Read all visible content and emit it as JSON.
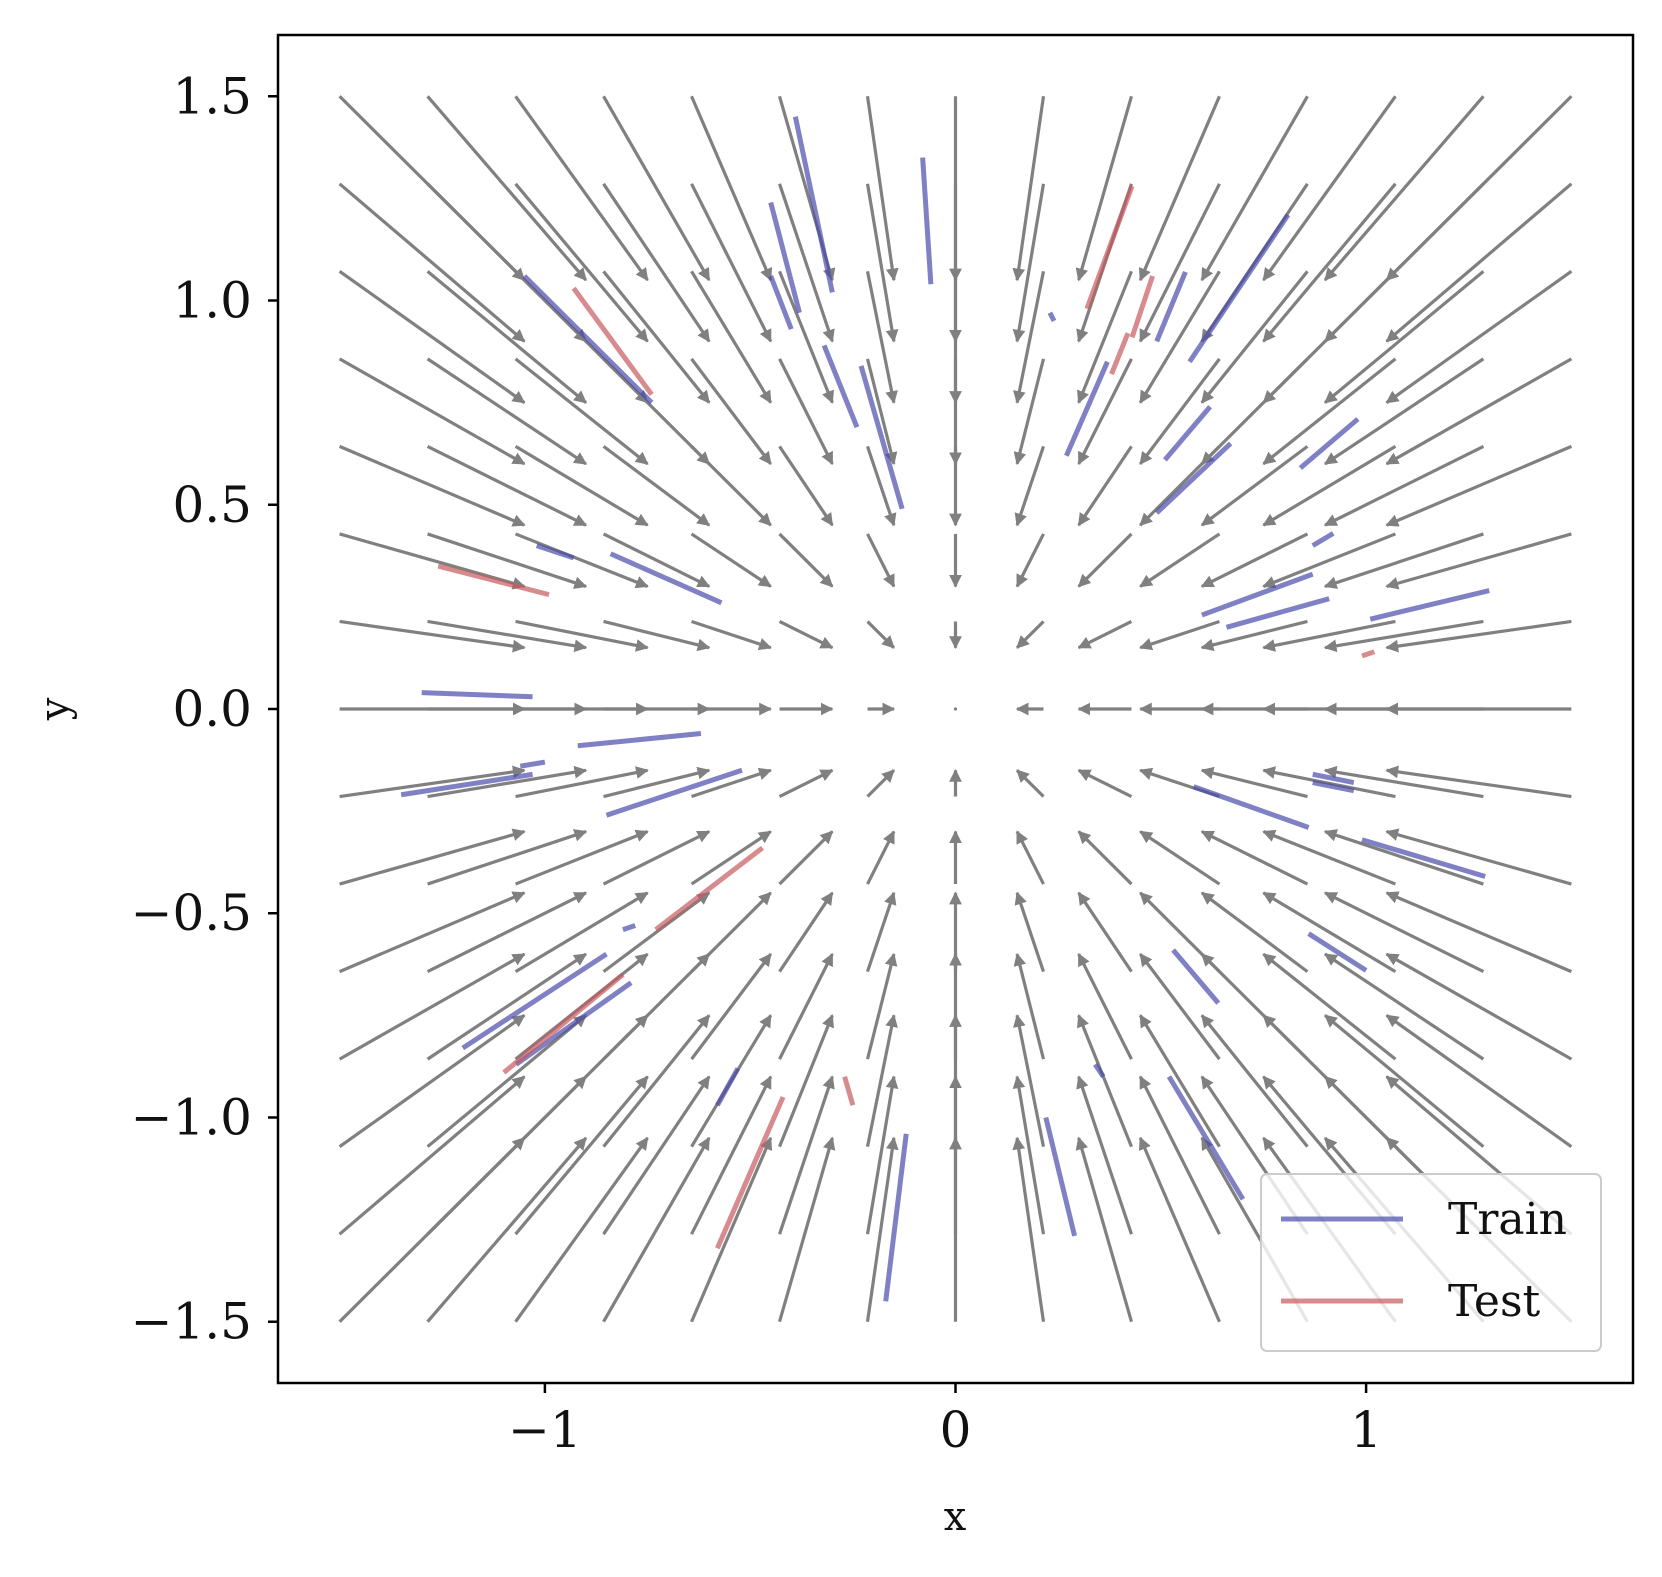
{
  "chart_data": {
    "type": "quiver",
    "title": "",
    "xlabel": "x",
    "ylabel": "y",
    "xlim": [
      -1.65,
      1.65
    ],
    "ylim": [
      -1.65,
      1.65
    ],
    "grid": false,
    "legend": {
      "placement": "lower-right"
    },
    "x_ticks": [
      {
        "value": -1,
        "label": "−1"
      },
      {
        "value": 0,
        "label": "0"
      },
      {
        "value": 1,
        "label": "1"
      }
    ],
    "y_ticks": [
      {
        "value": 1.5,
        "label": "1.5"
      },
      {
        "value": 1.0,
        "label": "1.0"
      },
      {
        "value": 0.5,
        "label": "0.5"
      },
      {
        "value": 0.0,
        "label": "0.0"
      },
      {
        "value": -0.5,
        "label": "−0.5"
      },
      {
        "value": -1.0,
        "label": "−1.0"
      },
      {
        "value": -1.5,
        "label": "−1.5"
      }
    ],
    "vector_field": {
      "color": "#808080",
      "grid_range": [
        -1.5,
        1.5
      ],
      "grid_count": 15,
      "description_of_field": "radial convergence toward origin, magnitude grows with distance from origin"
    },
    "series": [
      {
        "name": "Train",
        "color": "#4a4aab",
        "segments": [
          [
            [
              -1.3,
              0.04
            ],
            [
              -1.03,
              0.03
            ]
          ],
          [
            [
              -0.92,
              -0.09
            ],
            [
              -0.62,
              -0.06
            ]
          ],
          [
            [
              -1.06,
              -0.14
            ],
            [
              -1.0,
              -0.13
            ]
          ],
          [
            [
              -1.35,
              -0.21
            ],
            [
              -1.03,
              -0.16
            ]
          ],
          [
            [
              -0.85,
              -0.26
            ],
            [
              -0.52,
              -0.15
            ]
          ],
          [
            [
              -1.02,
              0.4
            ],
            [
              -0.93,
              0.37
            ]
          ],
          [
            [
              -0.84,
              0.38
            ],
            [
              -0.57,
              0.26
            ]
          ],
          [
            [
              -1.05,
              1.06
            ],
            [
              -0.74,
              0.75
            ]
          ],
          [
            [
              -0.39,
              1.45
            ],
            [
              -0.3,
              1.02
            ]
          ],
          [
            [
              -0.45,
              1.24
            ],
            [
              -0.38,
              0.97
            ]
          ],
          [
            [
              -0.45,
              1.06
            ],
            [
              -0.4,
              0.93
            ]
          ],
          [
            [
              -0.32,
              0.89
            ],
            [
              -0.24,
              0.69
            ]
          ],
          [
            [
              -0.23,
              0.84
            ],
            [
              -0.13,
              0.49
            ]
          ],
          [
            [
              -0.08,
              1.35
            ],
            [
              -0.06,
              1.04
            ]
          ],
          [
            [
              0.23,
              0.97
            ],
            [
              0.24,
              0.95
            ]
          ],
          [
            [
              0.27,
              0.62
            ],
            [
              0.37,
              0.85
            ]
          ],
          [
            [
              0.49,
              0.9
            ],
            [
              0.56,
              1.07
            ]
          ],
          [
            [
              0.57,
              0.85
            ],
            [
              0.81,
              1.21
            ]
          ],
          [
            [
              0.51,
              0.61
            ],
            [
              0.62,
              0.74
            ]
          ],
          [
            [
              0.49,
              0.48
            ],
            [
              0.67,
              0.65
            ]
          ],
          [
            [
              0.84,
              0.59
            ],
            [
              0.98,
              0.71
            ]
          ],
          [
            [
              0.87,
              0.4
            ],
            [
              0.92,
              0.43
            ]
          ],
          [
            [
              0.6,
              0.23
            ],
            [
              0.87,
              0.33
            ]
          ],
          [
            [
              0.66,
              0.2
            ],
            [
              0.91,
              0.27
            ]
          ],
          [
            [
              1.01,
              0.22
            ],
            [
              1.3,
              0.29
            ]
          ],
          [
            [
              0.58,
              -0.19
            ],
            [
              0.86,
              -0.29
            ]
          ],
          [
            [
              0.87,
              -0.16
            ],
            [
              0.97,
              -0.18
            ]
          ],
          [
            [
              0.87,
              -0.18
            ],
            [
              0.97,
              -0.2
            ]
          ],
          [
            [
              0.99,
              -0.32
            ],
            [
              1.29,
              -0.41
            ]
          ],
          [
            [
              0.86,
              -0.55
            ],
            [
              1.0,
              -0.64
            ]
          ],
          [
            [
              0.53,
              -0.59
            ],
            [
              0.64,
              -0.72
            ]
          ],
          [
            [
              0.34,
              -0.87
            ],
            [
              0.36,
              -0.9
            ]
          ],
          [
            [
              0.22,
              -1.0
            ],
            [
              0.29,
              -1.29
            ]
          ],
          [
            [
              0.52,
              -0.9
            ],
            [
              0.7,
              -1.2
            ]
          ],
          [
            [
              -0.81,
              -0.54
            ],
            [
              -0.78,
              -0.53
            ]
          ],
          [
            [
              -1.2,
              -0.83
            ],
            [
              -0.85,
              -0.6
            ]
          ],
          [
            [
              -1.07,
              -0.87
            ],
            [
              -0.79,
              -0.67
            ]
          ],
          [
            [
              -0.58,
              -0.97
            ],
            [
              -0.53,
              -0.88
            ]
          ],
          [
            [
              -0.12,
              -1.04
            ],
            [
              -0.17,
              -1.45
            ]
          ]
        ]
      },
      {
        "name": "Test",
        "color": "#c85a5e",
        "segments": [
          [
            [
              -0.93,
              1.03
            ],
            [
              -0.74,
              0.77
            ]
          ],
          [
            [
              -1.26,
              0.35
            ],
            [
              -0.99,
              0.28
            ]
          ],
          [
            [
              -0.47,
              -0.34
            ],
            [
              -0.73,
              -0.54
            ]
          ],
          [
            [
              -0.81,
              -0.65
            ],
            [
              -1.1,
              -0.89
            ]
          ],
          [
            [
              -0.58,
              -1.32
            ],
            [
              -0.42,
              -0.95
            ]
          ],
          [
            [
              -0.27,
              -0.9
            ],
            [
              -0.25,
              -0.97
            ]
          ],
          [
            [
              0.32,
              0.98
            ],
            [
              0.43,
              1.28
            ]
          ],
          [
            [
              0.38,
              0.82
            ],
            [
              0.42,
              0.92
            ]
          ],
          [
            [
              0.43,
              0.91
            ],
            [
              0.48,
              1.06
            ]
          ],
          [
            [
              0.99,
              0.13
            ],
            [
              1.02,
              0.14
            ]
          ]
        ]
      }
    ]
  }
}
